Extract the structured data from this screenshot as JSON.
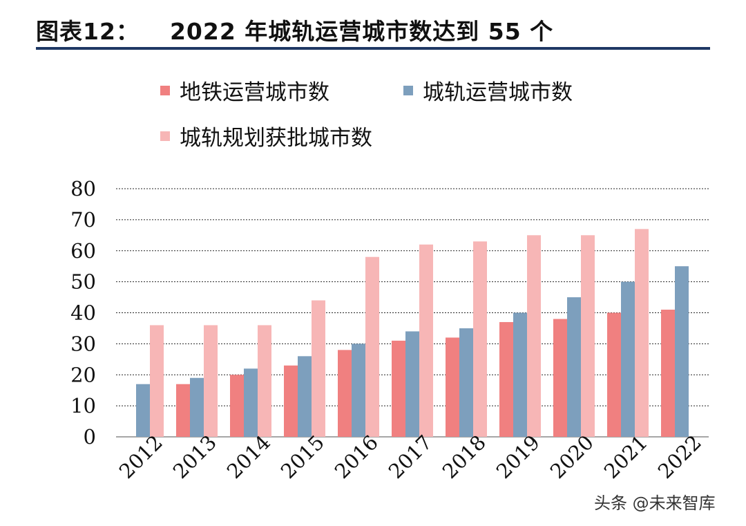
{
  "header": {
    "fig_label": "图表12：",
    "fig_title": "2022 年城轨运营城市数达到 55 个"
  },
  "colors": {
    "subway": "#f08080",
    "urban_rail": "#7d9fbd",
    "planned": "#f7b6b6",
    "title_rule": "#1f3864"
  },
  "chart_data": {
    "type": "bar",
    "title": "2022 年城轨运营城市数达到 55 个",
    "xlabel": "",
    "ylabel": "",
    "ylim": [
      0,
      80
    ],
    "yticks": [
      0,
      10,
      20,
      30,
      40,
      50,
      60,
      70,
      80
    ],
    "grid": true,
    "legend_position": "top",
    "categories": [
      "2012",
      "2013",
      "2014",
      "2015",
      "2016",
      "2017",
      "2018",
      "2019",
      "2020",
      "2021",
      "2022"
    ],
    "series": [
      {
        "name": "地铁运营城市数",
        "color": "#f08080",
        "values": [
          0,
          17,
          20,
          23,
          28,
          31,
          32,
          37,
          38,
          40,
          41
        ]
      },
      {
        "name": "城轨运营城市数",
        "color": "#7d9fbd",
        "values": [
          17,
          19,
          22,
          26,
          30,
          34,
          35,
          40,
          45,
          50,
          55
        ]
      },
      {
        "name": "城轨规划获批城市数",
        "color": "#f7b6b6",
        "values": [
          36,
          36,
          36,
          44,
          58,
          62,
          63,
          65,
          65,
          67,
          null
        ]
      }
    ]
  },
  "watermark": {
    "text": "头条 @未来智库",
    "icon": "camera-icon"
  }
}
